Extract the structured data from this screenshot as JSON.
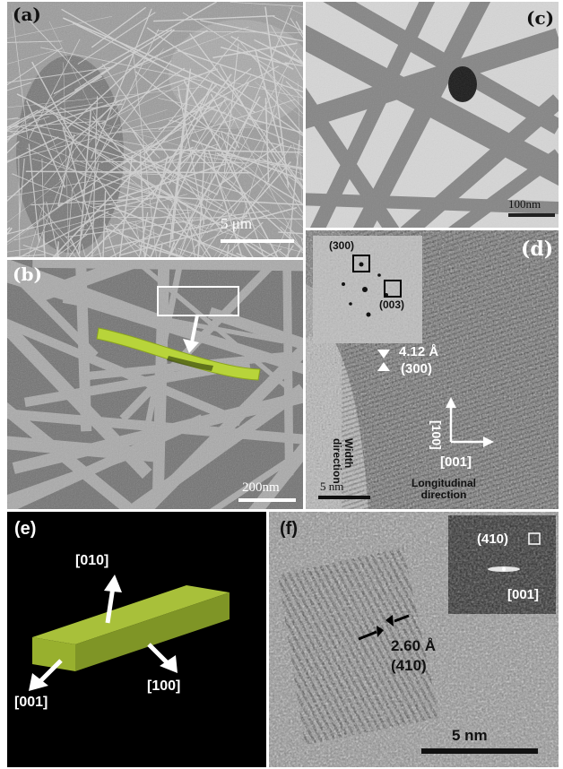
{
  "figure": {
    "panel_a": {
      "label": "(a)",
      "scale_bar": "5 μm"
    },
    "panel_b": {
      "label": "(b)",
      "scale_bar": "200nm"
    },
    "panel_c": {
      "label": "(c)",
      "scale_bar": "100nm"
    },
    "panel_d": {
      "label": "(d)",
      "fft_spot_1": "(300)",
      "fft_spot_2": "(003)",
      "spacing": "4.12 Å",
      "spacing_plane": "(300)",
      "width_dir_1": "Width",
      "width_dir_2": "direction",
      "axis_vertical": "[100]",
      "axis_horizontal": "[001]",
      "long_dir_1": "Longitudinal",
      "long_dir_2": "direction",
      "scale_bar": "5 nm"
    },
    "panel_e": {
      "label": "(e)",
      "dir_up": "[010]",
      "dir_right": "[100]",
      "dir_left": "[001]"
    },
    "panel_f": {
      "label": "(f)",
      "fft_spot": "(410)",
      "fft_axis": "[001]",
      "spacing": "2.60 Å",
      "spacing_plane": "(410)",
      "scale_bar": "5 nm"
    }
  }
}
